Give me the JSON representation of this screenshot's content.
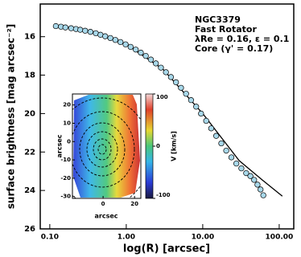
{
  "chart_data": [
    {
      "type": "scatter",
      "xlabel": "log(R) [arcsec]",
      "ylabel": "surface brightness [mag arcsec⁻²]",
      "annotations": [
        "NGC3379",
        "Fast Rotator",
        "λRe = 0.16, ε = 0.1",
        "Core (γ' = 0.17)"
      ],
      "xlim": [
        0.075,
        155
      ],
      "log_x": true,
      "xticks": [
        {
          "value": 0.1,
          "label": "0.10"
        },
        {
          "value": 1,
          "label": "1.00"
        },
        {
          "value": 10,
          "label": "10.00"
        },
        {
          "value": 100,
          "label": "100.00"
        }
      ],
      "ylim": [
        14.3,
        26
      ],
      "inverted_y": true,
      "yticks": [
        16,
        18,
        20,
        22,
        24,
        26
      ],
      "color": "#a8d8ea",
      "x": [
        0.12,
        0.14,
        0.16,
        0.19,
        0.22,
        0.25,
        0.29,
        0.34,
        0.4,
        0.46,
        0.53,
        0.62,
        0.72,
        0.84,
        0.98,
        1.14,
        1.33,
        1.55,
        1.8,
        2.1,
        2.44,
        2.84,
        3.3,
        3.84,
        4.47,
        5.2,
        6.05,
        7.04,
        8.2,
        9.5,
        11.1,
        12.9,
        15.0,
        17.5,
        20.3,
        23.7,
        27.5,
        32,
        37,
        42,
        47,
        52,
        57,
        62
      ],
      "values": [
        15.45,
        15.48,
        15.52,
        15.56,
        15.6,
        15.64,
        15.69,
        15.75,
        15.82,
        15.9,
        15.98,
        16.07,
        16.17,
        16.28,
        16.4,
        16.53,
        16.67,
        16.83,
        17.0,
        17.19,
        17.39,
        17.61,
        17.85,
        18.1,
        18.37,
        18.66,
        18.97,
        19.3,
        19.64,
        20.0,
        20.38,
        20.77,
        21.16,
        21.55,
        21.93,
        22.28,
        22.6,
        22.85,
        23.1,
        23.25,
        23.45,
        23.7,
        23.95,
        24.25
      ],
      "fit_color": "#000000",
      "fit_x": [
        0.12,
        0.3,
        1,
        3,
        10,
        30,
        60,
        110
      ],
      "fit_values": [
        15.43,
        15.7,
        16.4,
        17.68,
        20.0,
        22.45,
        23.45,
        24.3
      ]
    },
    {
      "type": "image",
      "xlabel": "arcsec",
      "ylabel": "arcsec",
      "xlim": [
        -19.5,
        24
      ],
      "xticks": [
        0,
        20
      ],
      "ylim": [
        -31,
        26
      ],
      "yticks": [
        20,
        10,
        0,
        -10,
        -20,
        -30
      ],
      "colorbar_label": "V [km/s]",
      "clim": [
        -100,
        100
      ],
      "cticks": [
        -100,
        0,
        100
      ]
    }
  ]
}
